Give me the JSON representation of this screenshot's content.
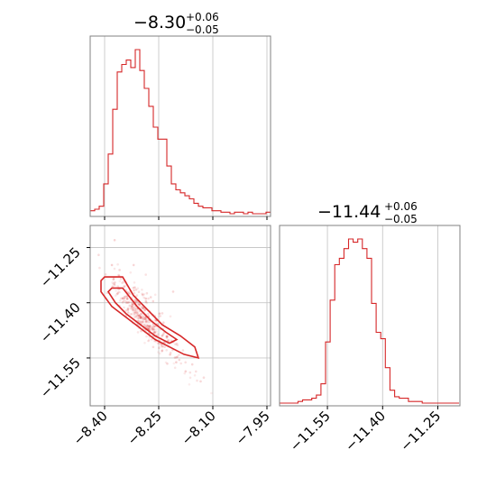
{
  "colors": {
    "accent": "#d62728",
    "fill_outer": "#f7cdd0",
    "fill_inner": "#e57983",
    "grid": "#c8c8c8",
    "frame": "#808080"
  },
  "chart_data": [
    {
      "type": "histogram",
      "panel": "param1-marginal",
      "title": {
        "median": "−8.30",
        "upper": "+0.06",
        "lower": "−0.05"
      },
      "xlim": [
        -8.44,
        -7.94
      ],
      "xticks": [
        -8.4,
        -8.25,
        -8.1,
        -7.95
      ],
      "bins": {
        "start": -8.44,
        "width": 0.0125,
        "counts": [
          2,
          3,
          5,
          20,
          40,
          70,
          95,
          100,
          103,
          98,
          110,
          96,
          84,
          72,
          58,
          50,
          50,
          32,
          20,
          16,
          14,
          12,
          10,
          7,
          5,
          4,
          4,
          2,
          2,
          1,
          1,
          0,
          1,
          1,
          0,
          1,
          0,
          0,
          0,
          1
        ]
      }
    },
    {
      "type": "histogram",
      "panel": "param2-marginal",
      "title": {
        "median": "−11.44",
        "upper": "+0.06",
        "lower": "−0.05"
      },
      "xlim": [
        -11.68,
        -11.19
      ],
      "xticks": [
        -11.55,
        -11.4,
        -11.25
      ],
      "bins": {
        "start": -11.68,
        "width": 0.0125,
        "counts": [
          0,
          0,
          0,
          0,
          1,
          2,
          2,
          3,
          5,
          12,
          38,
          64,
          86,
          90,
          96,
          102,
          100,
          102,
          96,
          90,
          62,
          44,
          40,
          22,
          8,
          4,
          3,
          3,
          1,
          1,
          1,
          0,
          0,
          0,
          0,
          0,
          0,
          0,
          0
        ]
      }
    },
    {
      "type": "scatter",
      "panel": "joint",
      "xlim": [
        -8.44,
        -7.94
      ],
      "ylim": [
        -11.68,
        -11.19
      ],
      "xticks": [
        -8.4,
        -8.25,
        -8.1,
        -7.95
      ],
      "yticks": [
        -11.25,
        -11.4,
        -11.55
      ],
      "relation": {
        "slope": -1.1,
        "anchor_x": -8.3,
        "anchor_y": -11.44
      },
      "contours": [
        {
          "level": "outer",
          "points": [
            [
              -8.4,
              -11.33
            ],
            [
              -8.35,
              -11.33
            ],
            [
              -8.32,
              -11.38
            ],
            [
              -8.28,
              -11.42
            ],
            [
              -8.24,
              -11.46
            ],
            [
              -8.19,
              -11.49
            ],
            [
              -8.15,
              -11.52
            ],
            [
              -8.14,
              -11.55
            ],
            [
              -8.18,
              -11.54
            ],
            [
              -8.22,
              -11.52
            ],
            [
              -8.26,
              -11.5
            ],
            [
              -8.3,
              -11.47
            ],
            [
              -8.34,
              -11.44
            ],
            [
              -8.38,
              -11.41
            ],
            [
              -8.41,
              -11.37
            ],
            [
              -8.41,
              -11.34
            ]
          ]
        },
        {
          "level": "inner",
          "points": [
            [
              -8.38,
              -11.36
            ],
            [
              -8.35,
              -11.36
            ],
            [
              -8.31,
              -11.41
            ],
            [
              -8.27,
              -11.45
            ],
            [
              -8.23,
              -11.48
            ],
            [
              -8.2,
              -11.5
            ],
            [
              -8.22,
              -11.51
            ],
            [
              -8.26,
              -11.49
            ],
            [
              -8.3,
              -11.46
            ],
            [
              -8.34,
              -11.43
            ],
            [
              -8.37,
              -11.4
            ],
            [
              -8.39,
              -11.37
            ]
          ]
        }
      ]
    }
  ]
}
